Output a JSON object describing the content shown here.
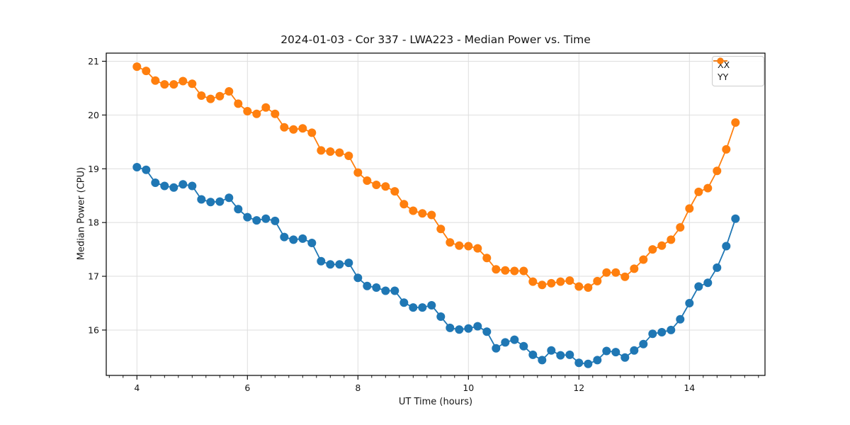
{
  "chart_data": {
    "type": "line",
    "title": "2024-01-03 - Cor 337 - LWA223 - Median Power vs. Time",
    "xlabel": "UT Time (hours)",
    "ylabel": "Median Power (CPU)",
    "xlim": [
      3.445,
      15.368
    ],
    "ylim": [
      15.156,
      21.151
    ],
    "x_major_ticks": [
      4,
      6,
      8,
      10,
      12,
      14
    ],
    "x_minor_step": 0.25,
    "y_major_ticks": [
      16,
      17,
      18,
      19,
      20,
      21
    ],
    "grid": true,
    "grid_color": "#dedede",
    "legend_position": "upper right",
    "marker": "circle",
    "x": [
      4.0,
      4.167,
      4.333,
      4.5,
      4.667,
      4.833,
      5.0,
      5.167,
      5.333,
      5.5,
      5.667,
      5.833,
      6.0,
      6.167,
      6.333,
      6.5,
      6.667,
      6.833,
      7.0,
      7.167,
      7.333,
      7.5,
      7.667,
      7.833,
      8.0,
      8.167,
      8.333,
      8.5,
      8.667,
      8.833,
      9.0,
      9.167,
      9.333,
      9.5,
      9.667,
      9.833,
      10.0,
      10.167,
      10.333,
      10.5,
      10.667,
      10.833,
      11.0,
      11.167,
      11.333,
      11.5,
      11.667,
      11.833,
      12.0,
      12.167,
      12.333,
      12.5,
      12.667,
      12.833,
      13.0,
      13.167,
      13.333,
      13.5,
      13.667,
      13.833,
      14.0,
      14.167,
      14.333,
      14.5,
      14.667,
      14.833
    ],
    "series": [
      {
        "name": "XX",
        "color": "#1f77b4",
        "values": [
          19.03,
          18.98,
          18.74,
          18.68,
          18.65,
          18.71,
          18.68,
          18.43,
          18.38,
          18.39,
          18.46,
          18.25,
          18.1,
          18.04,
          18.07,
          18.03,
          17.73,
          17.68,
          17.7,
          17.62,
          17.28,
          17.22,
          17.22,
          17.25,
          16.97,
          16.82,
          16.79,
          16.73,
          16.73,
          16.51,
          16.42,
          16.42,
          16.46,
          16.25,
          16.04,
          16.01,
          16.03,
          16.07,
          15.97,
          15.66,
          15.77,
          15.82,
          15.7,
          15.54,
          15.44,
          15.62,
          15.53,
          15.54,
          15.39,
          15.37,
          15.44,
          15.61,
          15.59,
          15.49,
          15.62,
          15.74,
          15.93,
          15.96,
          16.0,
          16.2,
          16.5,
          16.81,
          16.88,
          17.16,
          17.56,
          18.07
        ]
      },
      {
        "name": "YY",
        "color": "#ff7f0e",
        "values": [
          20.9,
          20.82,
          20.64,
          20.57,
          20.57,
          20.63,
          20.58,
          20.36,
          20.3,
          20.35,
          20.44,
          20.21,
          20.07,
          20.02,
          20.14,
          20.02,
          19.77,
          19.73,
          19.75,
          19.67,
          19.34,
          19.32,
          19.3,
          19.24,
          18.93,
          18.78,
          18.7,
          18.67,
          18.58,
          18.34,
          18.22,
          18.17,
          18.14,
          17.88,
          17.63,
          17.57,
          17.56,
          17.52,
          17.34,
          17.13,
          17.11,
          17.1,
          17.1,
          16.9,
          16.84,
          16.87,
          16.9,
          16.92,
          16.81,
          16.79,
          16.91,
          17.07,
          17.07,
          16.99,
          17.14,
          17.31,
          17.5,
          17.57,
          17.68,
          17.91,
          18.26,
          18.57,
          18.64,
          18.96,
          19.36,
          19.86
        ]
      }
    ]
  }
}
